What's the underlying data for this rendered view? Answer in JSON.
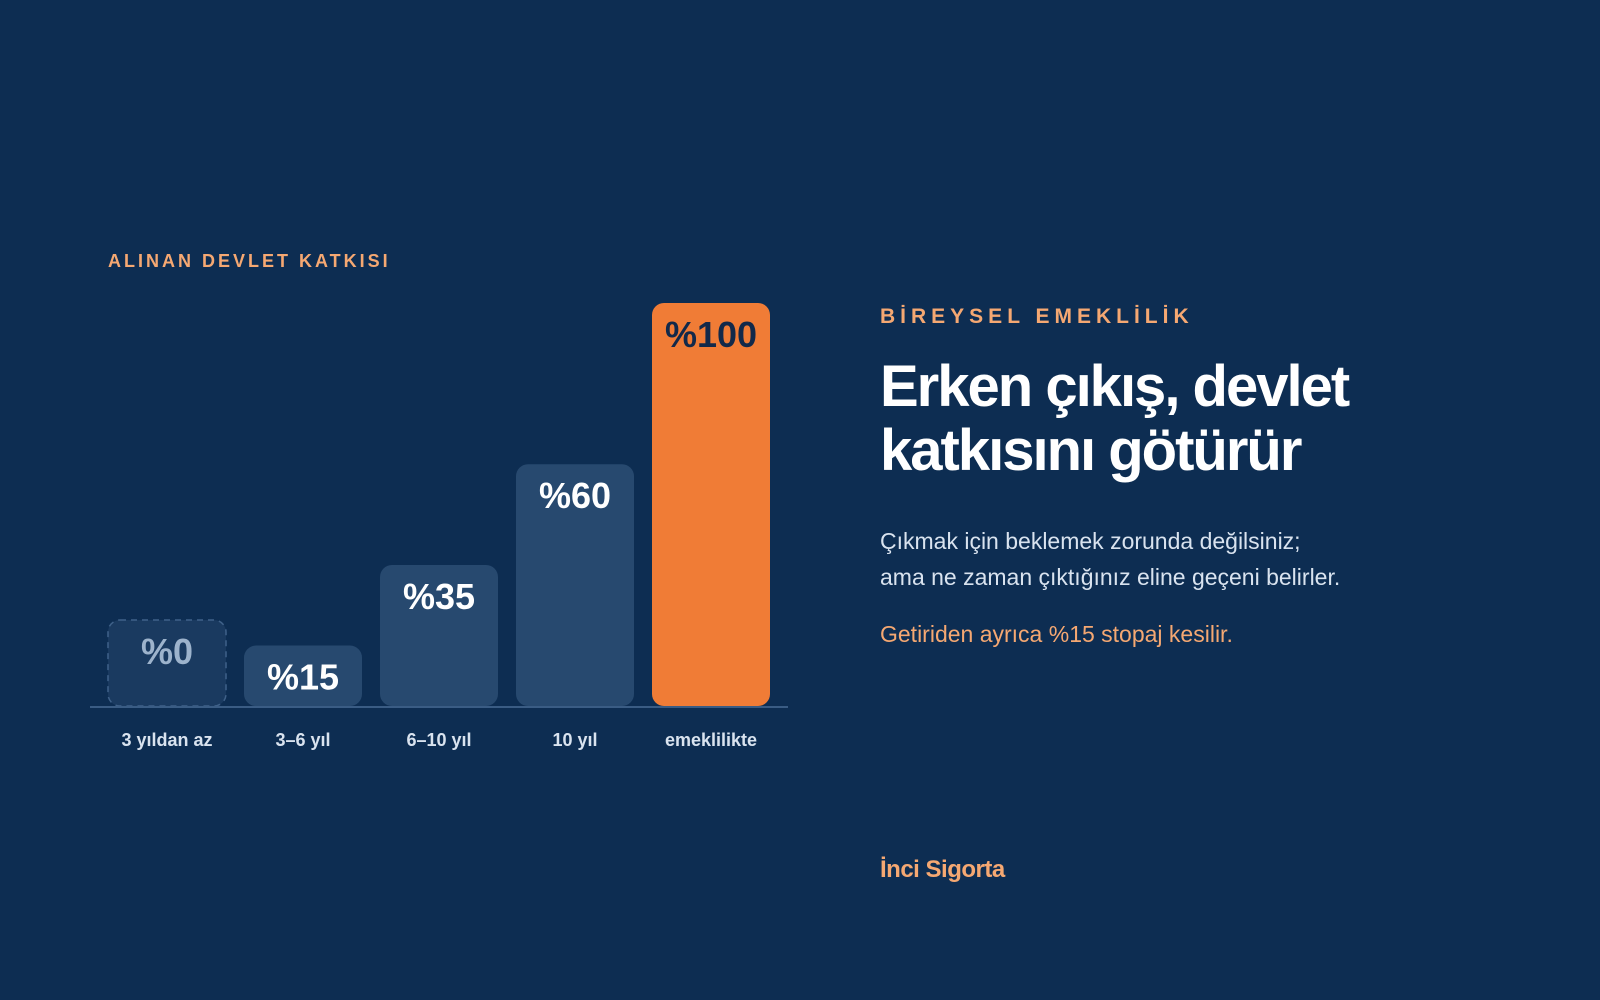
{
  "chart_data": {
    "type": "bar",
    "title": "ALINAN DEVLET KATKISI",
    "categories": [
      "3 yıldan az",
      "3–6 yıl",
      "6–10 yıl",
      "10 yıl",
      "emeklilikte"
    ],
    "values": [
      0,
      15,
      35,
      60,
      100
    ],
    "value_labels": [
      "%0",
      "%15",
      "%35",
      "%60",
      "%100"
    ],
    "ylim": [
      0,
      100
    ],
    "grid": false,
    "highlight_index": 4,
    "colors": {
      "bar": "#27496f",
      "bar_zero_fill": "#1a3a60",
      "bar_zero_stroke": "#3f6189",
      "highlight": "#f07c36",
      "baseline": "#3a5c84",
      "value_text": "#ffffff",
      "value_text_zero": "#9db3cc",
      "value_text_highlight": "#12294a"
    }
  },
  "text": {
    "eyebrow": "BİREYSEL EMEKLİLİK",
    "headline_line1": "Erken çıkış, devlet",
    "headline_line2": "katkısını götürür",
    "body_line1": "Çıkmak için beklemek zorunda değilsiniz;",
    "body_line2": "ama ne zaman çıktığınız eline geçeni belirler.",
    "note": "Getiriden ayrıca %15 stopaj kesilir.",
    "brand": "İnci Sigorta"
  }
}
